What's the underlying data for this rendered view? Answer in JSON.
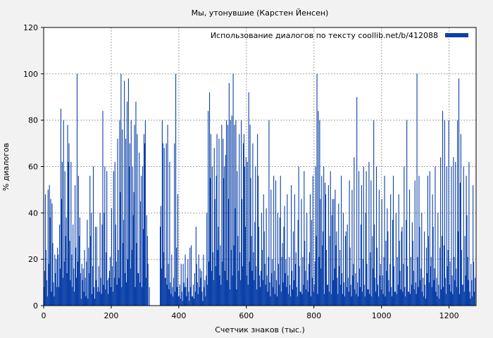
{
  "chart_data": {
    "type": "bar",
    "title": "Мы, утонувшие (Карстен Йенсен)",
    "xlabel": "Счетчик знаков (тыс.)",
    "ylabel": "% диалогов",
    "xlim": [
      0,
      1280
    ],
    "ylim": [
      0,
      120
    ],
    "xticks": [
      0,
      200,
      400,
      600,
      800,
      1000,
      1200
    ],
    "yticks": [
      0,
      20,
      40,
      60,
      80,
      100,
      120
    ],
    "grid": true,
    "legend_position": "top-right",
    "series": [
      {
        "name": "Использование диалогов по тексту  coollib.net/b/412088",
        "color": "#0b40a8",
        "bin_width": 2,
        "x_start": 1,
        "x_end": 1279,
        "baseline_pattern": [
          3,
          10,
          1,
          18,
          6,
          0,
          25,
          12,
          4,
          30,
          8,
          2,
          15,
          20,
          5,
          0,
          35,
          9,
          14,
          3
        ],
        "regions": [
          {
            "from": 1,
            "to": 40,
            "level": 28
          },
          {
            "from": 40,
            "to": 110,
            "level": 40
          },
          {
            "from": 110,
            "to": 160,
            "level": 22
          },
          {
            "from": 160,
            "to": 220,
            "level": 30
          },
          {
            "from": 220,
            "to": 310,
            "level": 52
          },
          {
            "from": 310,
            "to": 345,
            "level": 0
          },
          {
            "from": 345,
            "to": 375,
            "level": 45
          },
          {
            "from": 375,
            "to": 480,
            "level": 16
          },
          {
            "from": 480,
            "to": 640,
            "level": 48
          },
          {
            "from": 640,
            "to": 720,
            "level": 28
          },
          {
            "from": 720,
            "to": 800,
            "level": 24
          },
          {
            "from": 800,
            "to": 880,
            "level": 34
          },
          {
            "from": 880,
            "to": 1000,
            "level": 26
          },
          {
            "from": 1000,
            "to": 1100,
            "level": 24
          },
          {
            "from": 1100,
            "to": 1180,
            "level": 22
          },
          {
            "from": 1180,
            "to": 1260,
            "level": 34
          },
          {
            "from": 1260,
            "to": 1279,
            "level": 12
          }
        ],
        "peaks": [
          [
            5,
            48
          ],
          [
            13,
            50
          ],
          [
            17,
            52
          ],
          [
            21,
            46
          ],
          [
            25,
            44
          ],
          [
            33,
            22
          ],
          [
            41,
            25
          ],
          [
            51,
            85
          ],
          [
            55,
            62
          ],
          [
            59,
            80
          ],
          [
            63,
            58
          ],
          [
            71,
            78
          ],
          [
            75,
            70
          ],
          [
            81,
            62
          ],
          [
            93,
            52
          ],
          [
            99,
            100
          ],
          [
            103,
            56
          ],
          [
            113,
            18
          ],
          [
            121,
            24
          ],
          [
            129,
            37
          ],
          [
            137,
            56
          ],
          [
            141,
            40
          ],
          [
            147,
            60
          ],
          [
            157,
            34
          ],
          [
            167,
            40
          ],
          [
            175,
            84
          ],
          [
            181,
            60
          ],
          [
            187,
            58
          ],
          [
            193,
            12
          ],
          [
            201,
            42
          ],
          [
            207,
            58
          ],
          [
            211,
            62
          ],
          [
            219,
            72
          ],
          [
            225,
            80
          ],
          [
            229,
            100
          ],
          [
            233,
            76
          ],
          [
            239,
            97
          ],
          [
            243,
            72
          ],
          [
            247,
            88
          ],
          [
            251,
            98
          ],
          [
            255,
            70
          ],
          [
            259,
            80
          ],
          [
            263,
            60
          ],
          [
            269,
            78
          ],
          [
            273,
            88
          ],
          [
            277,
            74
          ],
          [
            283,
            66
          ],
          [
            289,
            56
          ],
          [
            297,
            74
          ],
          [
            301,
            80
          ],
          [
            307,
            30
          ],
          [
            313,
            8
          ],
          [
            351,
            80
          ],
          [
            357,
            68
          ],
          [
            363,
            70
          ],
          [
            367,
            78
          ],
          [
            373,
            62
          ],
          [
            387,
            70
          ],
          [
            391,
            100
          ],
          [
            397,
            48
          ],
          [
            407,
            18
          ],
          [
            417,
            8
          ],
          [
            427,
            20
          ],
          [
            437,
            26
          ],
          [
            451,
            34
          ],
          [
            463,
            16
          ],
          [
            473,
            22
          ],
          [
            483,
            40
          ],
          [
            487,
            84
          ],
          [
            491,
            92
          ],
          [
            495,
            74
          ],
          [
            499,
            60
          ],
          [
            505,
            68
          ],
          [
            511,
            56
          ],
          [
            519,
            72
          ],
          [
            527,
            78
          ],
          [
            531,
            72
          ],
          [
            535,
            60
          ],
          [
            541,
            80
          ],
          [
            545,
            78
          ],
          [
            549,
            96
          ],
          [
            553,
            80
          ],
          [
            557,
            82
          ],
          [
            561,
            100
          ],
          [
            565,
            78
          ],
          [
            569,
            80
          ],
          [
            573,
            58
          ],
          [
            579,
            74
          ],
          [
            585,
            80
          ],
          [
            591,
            70
          ],
          [
            595,
            60
          ],
          [
            599,
            64
          ],
          [
            603,
            62
          ],
          [
            607,
            92
          ],
          [
            611,
            78
          ],
          [
            619,
            70
          ],
          [
            627,
            60
          ],
          [
            635,
            56
          ],
          [
            645,
            40
          ],
          [
            651,
            48
          ],
          [
            659,
            42
          ],
          [
            667,
            80
          ],
          [
            673,
            50
          ],
          [
            681,
            56
          ],
          [
            687,
            54
          ],
          [
            693,
            40
          ],
          [
            701,
            56
          ],
          [
            711,
            34
          ],
          [
            721,
            48
          ],
          [
            733,
            52
          ],
          [
            743,
            48
          ],
          [
            755,
            60
          ],
          [
            763,
            46
          ],
          [
            771,
            58
          ],
          [
            779,
            40
          ],
          [
            789,
            48
          ],
          [
            797,
            56
          ],
          [
            805,
            60
          ],
          [
            809,
            100
          ],
          [
            813,
            84
          ],
          [
            817,
            80
          ],
          [
            823,
            56
          ],
          [
            829,
            60
          ],
          [
            835,
            48
          ],
          [
            843,
            52
          ],
          [
            849,
            58
          ],
          [
            855,
            46
          ],
          [
            863,
            50
          ],
          [
            873,
            44
          ],
          [
            881,
            56
          ],
          [
            887,
            40
          ],
          [
            895,
            32
          ],
          [
            905,
            54
          ],
          [
            913,
            50
          ],
          [
            919,
            64
          ],
          [
            927,
            90
          ],
          [
            933,
            58
          ],
          [
            941,
            52
          ],
          [
            947,
            60
          ],
          [
            955,
            58
          ],
          [
            963,
            62
          ],
          [
            969,
            54
          ],
          [
            977,
            80
          ],
          [
            985,
            60
          ],
          [
            993,
            50
          ],
          [
            1001,
            46
          ],
          [
            1009,
            56
          ],
          [
            1017,
            42
          ],
          [
            1027,
            48
          ],
          [
            1035,
            56
          ],
          [
            1043,
            40
          ],
          [
            1051,
            48
          ],
          [
            1061,
            34
          ],
          [
            1067,
            60
          ],
          [
            1075,
            80
          ],
          [
            1083,
            50
          ],
          [
            1091,
            36
          ],
          [
            1099,
            54
          ],
          [
            1105,
            100
          ],
          [
            1111,
            56
          ],
          [
            1119,
            40
          ],
          [
            1127,
            32
          ],
          [
            1137,
            56
          ],
          [
            1143,
            58
          ],
          [
            1151,
            48
          ],
          [
            1159,
            60
          ],
          [
            1167,
            40
          ],
          [
            1175,
            64
          ],
          [
            1181,
            84
          ],
          [
            1187,
            80
          ],
          [
            1193,
            60
          ],
          [
            1199,
            80
          ],
          [
            1207,
            60
          ],
          [
            1213,
            64
          ],
          [
            1219,
            62
          ],
          [
            1225,
            80
          ],
          [
            1229,
            98
          ],
          [
            1235,
            74
          ],
          [
            1243,
            60
          ],
          [
            1251,
            56
          ],
          [
            1259,
            62
          ],
          [
            1265,
            18
          ],
          [
            1271,
            52
          ],
          [
            1277,
            12
          ]
        ]
      }
    ]
  }
}
